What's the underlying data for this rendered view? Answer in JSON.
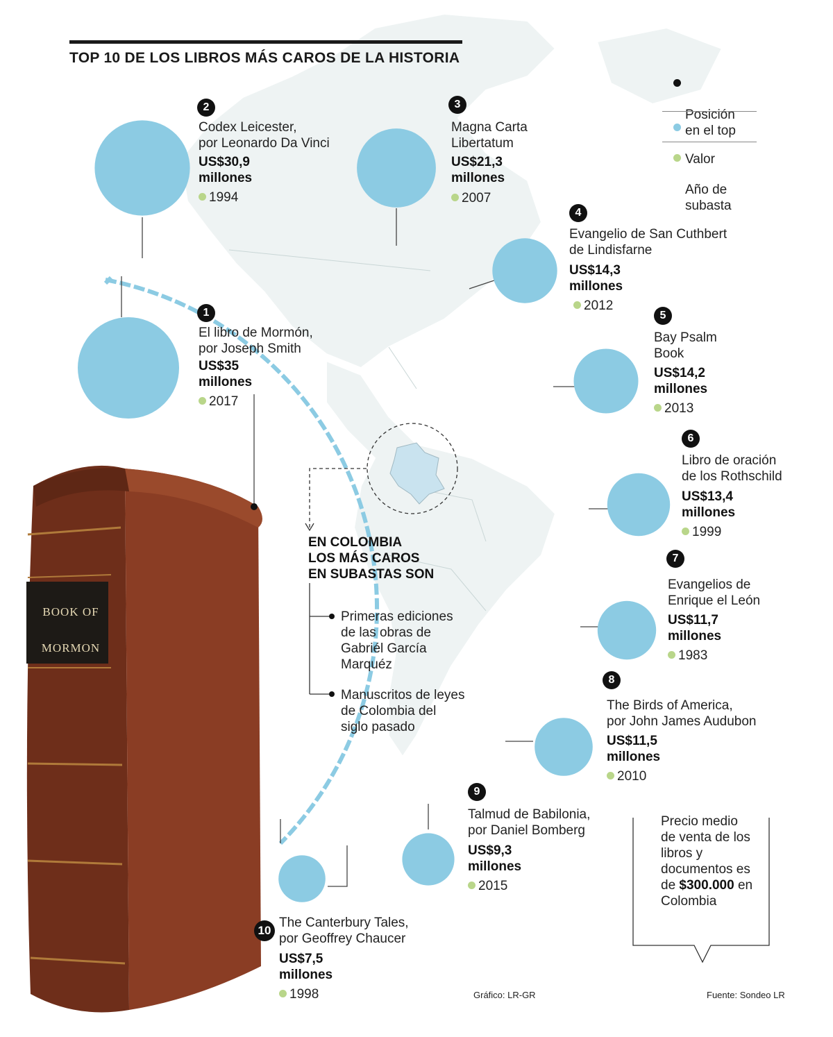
{
  "title": "TOP 10 DE LOS LIBROS MÁS CAROS DE LA HISTORIA",
  "colors": {
    "value_circle": "#8ccbe3",
    "rank_dot": "#111111",
    "year_dot": "#b9d68a",
    "map": "#eef3f3",
    "book_leather": "#7a3520"
  },
  "legend": {
    "items": [
      {
        "label": "Posición\nen el top",
        "color": "#111111"
      },
      {
        "label": "Valor",
        "color": "#8ccbe3"
      },
      {
        "label": "Año de\nsubasta",
        "color": "#b9d68a"
      }
    ]
  },
  "chart_data": {
    "type": "bubble",
    "title": "TOP 10 DE LOS LIBROS MÁS CAROS DE LA HISTORIA",
    "value_unit": "millones de US$",
    "books": [
      {
        "rank": "1",
        "name": "El libro de Mormón,\npor Joseph Smith",
        "value_label": "US$35\nmillones",
        "value": 35,
        "year": "2017"
      },
      {
        "rank": "2",
        "name": "Codex Leicester,\npor Leonardo Da Vinci",
        "value_label": "US$30,9\nmillones",
        "value": 30.9,
        "year": "1994"
      },
      {
        "rank": "3",
        "name": "Magna Carta\nLibertatum",
        "value_label": "US$21,3\nmillones",
        "value": 21.3,
        "year": "2007"
      },
      {
        "rank": "4",
        "name": "Evangelio de San Cuthbert\nde Lindisfarne",
        "value_label": "US$14,3\nmillones",
        "value": 14.3,
        "year": "2012"
      },
      {
        "rank": "5",
        "name": "Bay Psalm\nBook",
        "value_label": "US$14,2\nmillones",
        "value": 14.2,
        "year": "2013"
      },
      {
        "rank": "6",
        "name": "Libro de oración\nde los Rothschild",
        "value_label": "US$13,4\nmillones",
        "value": 13.4,
        "year": "1999"
      },
      {
        "rank": "7",
        "name": "Evangelios de\nEnrique el León",
        "value_label": "US$11,7\nmillones",
        "value": 11.7,
        "year": "1983"
      },
      {
        "rank": "8",
        "name": "The Birds of America,\npor John James Audubon",
        "value_label": "US$11,5\nmillones",
        "value": 11.5,
        "year": "2010"
      },
      {
        "rank": "9",
        "name": "Talmud de Babilonia,\npor Daniel Bomberg",
        "value_label": "US$9,3\nmillones",
        "value": 9.3,
        "year": "2015"
      },
      {
        "rank": "10",
        "name": "The Canterbury Tales,\npor Geoffrey Chaucer",
        "value_label": " US$7,5\nmillones",
        "value": 7.5,
        "year": "1998"
      }
    ]
  },
  "colombia": {
    "title": "EN COLOMBIA\nLOS MÁS CAROS\nEN SUBASTAS SON",
    "items": [
      "Primeras ediciones\nde las obras de\nGabriél García\nMarquéz",
      "Manuscritos de leyes\nde Colombia del\nsiglo pasado"
    ]
  },
  "book_image": {
    "spine_text": "BOOK OF\nMORMON"
  },
  "note": {
    "text_before": "Precio medio de venta de los libros y documentos es de ",
    "amount": "$300.000",
    "text_after": " en Colombia"
  },
  "credits": {
    "graphic": "Gráfico: LR-GR",
    "source": "Fuente: Sondeo LR"
  }
}
